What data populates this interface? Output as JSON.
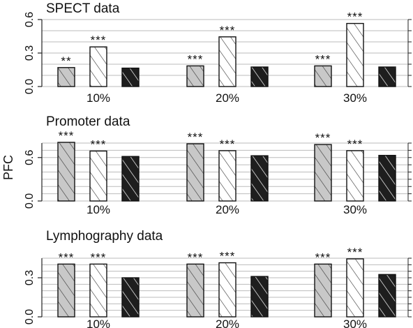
{
  "chart_data": {
    "type": "bar",
    "ylabel": "PFC",
    "panels": [
      {
        "title": "SPECT data",
        "categories": [
          "10%",
          "20%",
          "30%"
        ],
        "ylim": [
          0,
          0.6
        ],
        "yticks": [
          0.0,
          0.3,
          0.6
        ],
        "ytick_labels": [
          "0.0",
          "0.3",
          "0.6"
        ],
        "series": [
          {
            "values": [
              0.17,
              0.185,
              0.185
            ],
            "significance": [
              "**",
              "***",
              "***"
            ]
          },
          {
            "values": [
              0.355,
              0.445,
              0.565
            ],
            "significance": [
              "***",
              "***",
              "***"
            ]
          },
          {
            "values": [
              0.165,
              0.175,
              0.175
            ],
            "significance": [
              "",
              "",
              ""
            ]
          }
        ]
      },
      {
        "title": "Promoter data",
        "categories": [
          "10%",
          "20%",
          "30%"
        ],
        "ylim": [
          0,
          0.8
        ],
        "yticks": [
          0.0,
          0.6
        ],
        "ytick_labels": [
          "0.0",
          "0.6"
        ],
        "series": [
          {
            "values": [
              0.81,
              0.79,
              0.78
            ],
            "significance": [
              "***",
              "***",
              "***"
            ]
          },
          {
            "values": [
              0.69,
              0.695,
              0.695
            ],
            "significance": [
              "***",
              "***",
              "***"
            ]
          },
          {
            "values": [
              0.615,
              0.625,
              0.63
            ],
            "significance": [
              "",
              "",
              ""
            ]
          }
        ]
      },
      {
        "title": "Lymphography data",
        "categories": [
          "10%",
          "20%",
          "30%"
        ],
        "ylim": [
          0,
          0.45
        ],
        "yticks": [
          0.0,
          0.3
        ],
        "ytick_labels": [
          "0.0",
          "0.3"
        ],
        "series": [
          {
            "values": [
              0.405,
              0.405,
              0.405
            ],
            "significance": [
              "***",
              "***",
              "***"
            ]
          },
          {
            "values": [
              0.405,
              0.415,
              0.445
            ],
            "significance": [
              "***",
              "***",
              "***"
            ]
          },
          {
            "values": [
              0.3,
              0.31,
              0.325
            ],
            "significance": [
              "",
              "",
              ""
            ]
          }
        ]
      }
    ],
    "series_styles": [
      {
        "fill": "#c8c8c8",
        "hatch": "#333333"
      },
      {
        "fill": "#ffffff",
        "hatch": "#333333"
      },
      {
        "fill": "#1e1e1e",
        "hatch": "#ffffff"
      }
    ],
    "grid": true,
    "legend": "none"
  }
}
